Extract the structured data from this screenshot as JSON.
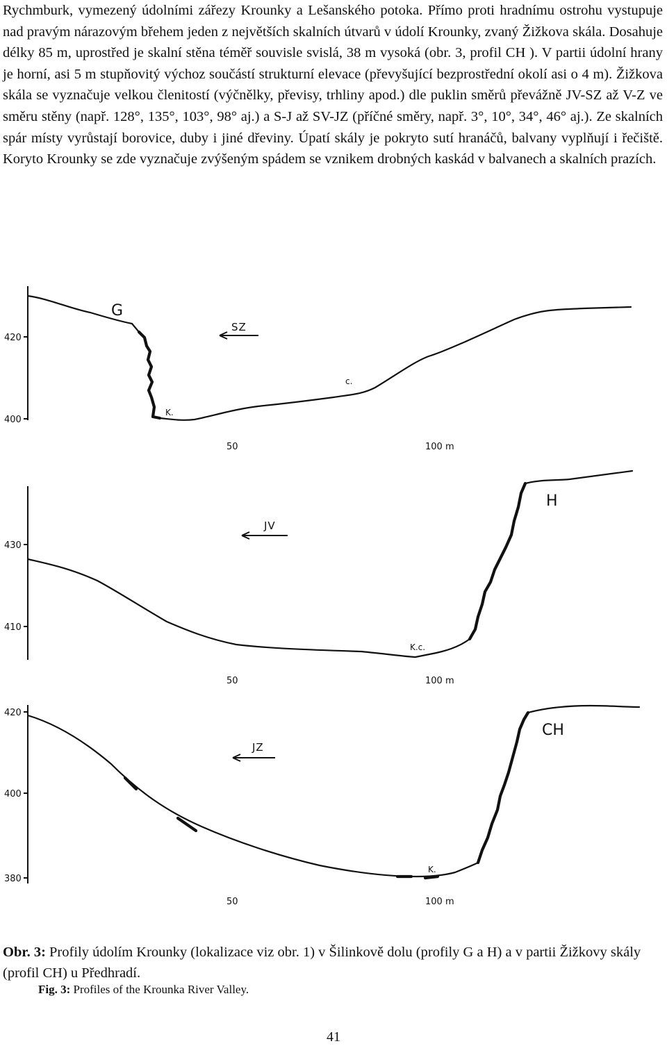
{
  "page": {
    "paragraph": "Rychmburk, vymezený údolními zářezy Krounky a Lešanského potoka. Přímo proti hradnímu ostrohu vystupuje nad pravým nárazovým břehem jeden z největších skalních útvarů v údolí Krounky, zvaný Žižkova skála. Dosahuje délky 85 m, uprostřed je skalní stěna téměř souvisle svislá, 38 m vysoká (obr. 3, profil CH ). V partii údolní hrany je horní, asi 5 m stupňovitý výchoz součástí strukturní elevace (převyšující bezprostřední okolí asi o 4 m). Žižkova skála se vyznačuje velkou členitostí (výčnělky, převisy, trhliny apod.) dle puklin směrů převážně JV-SZ až V-Z ve směru stěny (např. 128°, 135°, 103°, 98° aj.) a S-J až SV-JZ (příčné směry, např. 3°, 10°, 34°, 46° aj.). Ze skalních spár místy vyrůstají borovice, duby i jiné dřeviny. Úpatí skály je pokryto sutí hranáčů, balvany vyplňují i řečiště. Koryto Krounky se zde vyznačuje zvýšeným spádem se vznikem drobných kaskád v balvanech a skalních prazích.",
    "page_number": "41"
  },
  "figure": {
    "caption_label": "Obr. 3:",
    "caption_text": " Profily údolím Krounky (lokalizace viz obr. 1) v Šilinkově dolu (profily G a H) a v partii Žižkovy skály (profil CH) u Předhradí.",
    "caption_en_label": "Fig. 3:",
    "caption_en_text": " Profiles of the Krounka River Valley.",
    "profiles": [
      {
        "profile": "G",
        "direction": "SZ",
        "y_ticks": [
          "420",
          "400"
        ],
        "x_ticks": [
          "50",
          "100 m"
        ],
        "annotations": [
          "K.",
          "c."
        ]
      },
      {
        "profile": "H",
        "direction": "JV",
        "y_ticks": [
          "430",
          "410"
        ],
        "x_ticks": [
          "50",
          "100 m"
        ],
        "annotations": [
          "K.c."
        ]
      },
      {
        "profile": "CH",
        "direction": "JZ",
        "y_ticks": [
          "420",
          "400",
          "380"
        ],
        "x_ticks": [
          "50",
          "100 m"
        ],
        "annotations": [
          "K."
        ]
      }
    ]
  }
}
